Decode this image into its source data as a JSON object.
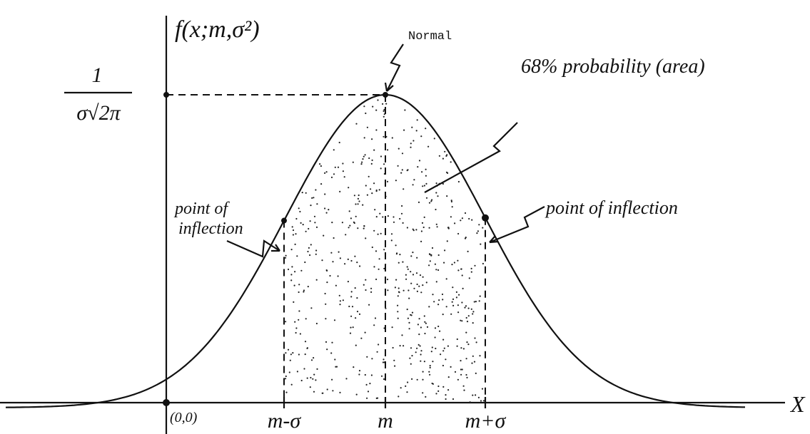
{
  "axis_label": "f(x;m,σ²)",
  "peak_value": {
    "numerator": "1",
    "denominator": "σ√2π"
  },
  "labels": {
    "normal": "Normal",
    "area": "68% probability (area)",
    "origin": "(0,0)",
    "x_axis": "X"
  },
  "inflection_left": [
    "point of",
    "inflection"
  ],
  "inflection_right": "point of inflection",
  "x_ticks": [
    "m-σ",
    "m",
    "m+σ"
  ]
}
